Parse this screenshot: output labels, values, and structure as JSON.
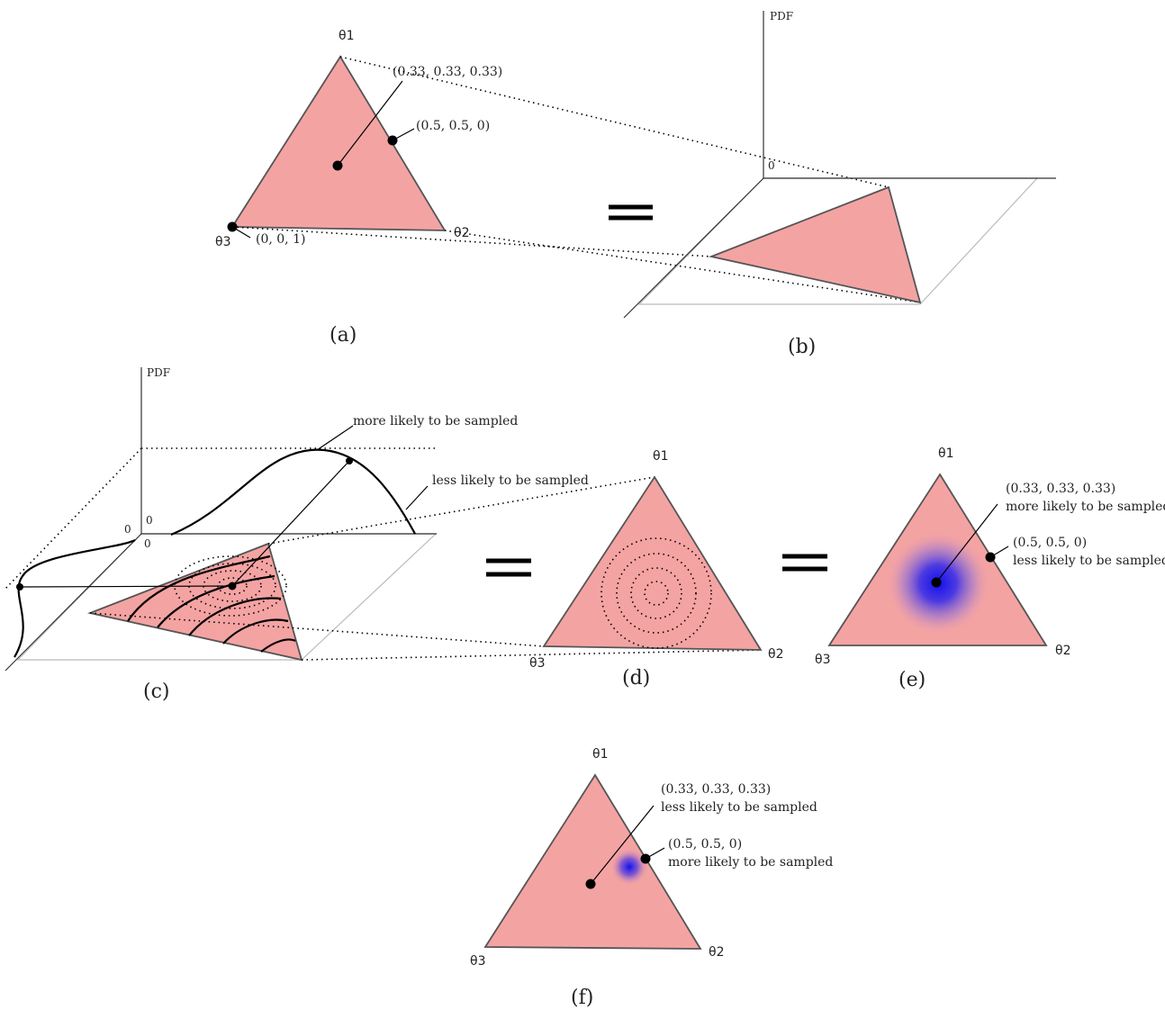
{
  "vertices": {
    "theta1": "θ1",
    "theta2": "θ2",
    "theta3": "θ3"
  },
  "axis": {
    "pdf": "PDF",
    "zero": "0"
  },
  "panels": {
    "a": "(a)",
    "b": "(b)",
    "c": "(c)",
    "d": "(d)",
    "e": "(e)",
    "f": "(f)"
  },
  "points": {
    "centroid": "(0.33, 0.33, 0.33)",
    "edge_mid": "(0.5, 0.5, 0)",
    "corner": "(0, 0, 1)"
  },
  "phrases": {
    "more": "more likely to be sampled",
    "less": "less likely to be sampled"
  },
  "colors": {
    "simplex_fill": "#f4a3a3",
    "density_peak": "#1010ee"
  }
}
